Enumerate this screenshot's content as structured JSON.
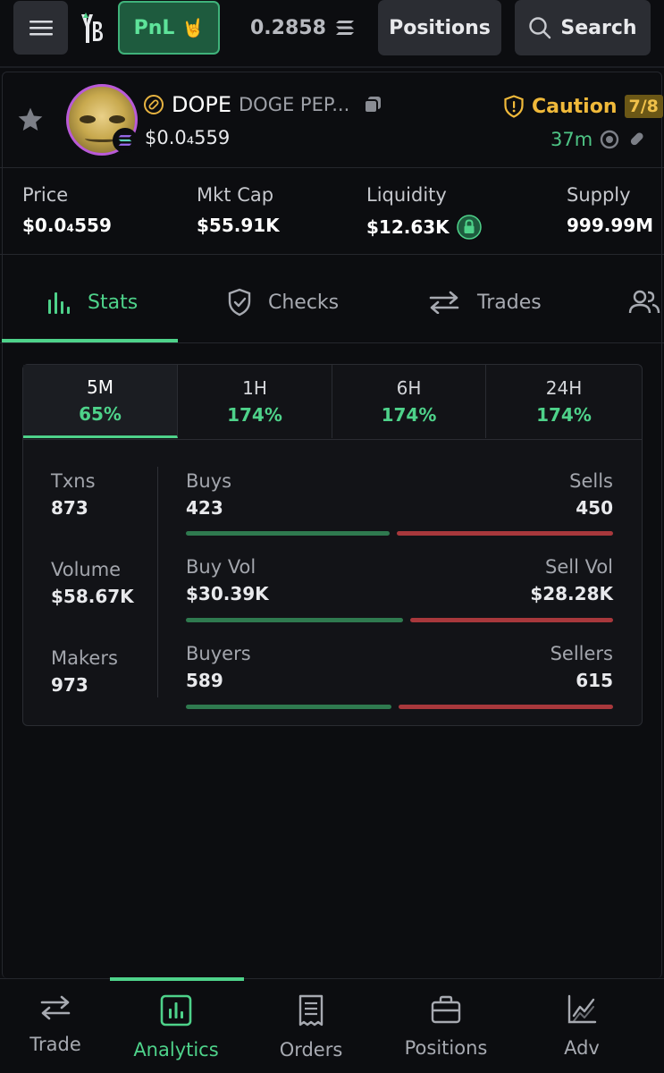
{
  "topbar": {
    "pnl_label": "PnL",
    "pnl_emoji": "🤘",
    "balance": "0.2858",
    "positions_label": "Positions",
    "search_label": "Search"
  },
  "token": {
    "symbol": "DOPE",
    "name": "DOGE PEP...",
    "price": "$0.0₄559",
    "safety_label": "Caution",
    "safety_score": "7/8",
    "age": "37m"
  },
  "metrics": [
    {
      "label": "Price",
      "value": "$0.0₄559"
    },
    {
      "label": "Mkt Cap",
      "value": "$55.91K"
    },
    {
      "label": "Liquidity",
      "value": "$12.63K"
    },
    {
      "label": "Supply",
      "value": "999.99M"
    }
  ],
  "tabs": [
    {
      "label": "Stats",
      "icon": "bar-chart-icon"
    },
    {
      "label": "Checks",
      "icon": "shield-check-icon"
    },
    {
      "label": "Trades",
      "icon": "swap-icon"
    },
    {
      "label": "",
      "icon": "users-icon"
    }
  ],
  "timeframes": [
    {
      "label": "5M",
      "change": "65%"
    },
    {
      "label": "1H",
      "change": "174%"
    },
    {
      "label": "6H",
      "change": "174%"
    },
    {
      "label": "24H",
      "change": "174%"
    }
  ],
  "stats": {
    "txns": {
      "label": "Txns",
      "value": "873"
    },
    "volume": {
      "label": "Volume",
      "value": "$58.67K"
    },
    "makers": {
      "label": "Makers",
      "value": "973"
    },
    "buys": {
      "label": "Buys",
      "value": "423",
      "fraction": 0.485
    },
    "sells": {
      "label": "Sells",
      "value": "450"
    },
    "buy_vol": {
      "label": "Buy Vol",
      "value": "$30.39K",
      "fraction": 0.518
    },
    "sell_vol": {
      "label": "Sell Vol",
      "value": "$28.28K"
    },
    "buyers": {
      "label": "Buyers",
      "value": "589",
      "fraction": 0.489
    },
    "sellers": {
      "label": "Sellers",
      "value": "615"
    }
  },
  "colors": {
    "accent": "#4ed28a",
    "buy_bar": "#2f7a4f",
    "sell_bar": "#a8383c",
    "caution": "#f0b93a"
  },
  "bottom_nav": [
    {
      "label": "Trade",
      "icon": "swap-icon"
    },
    {
      "label": "Analytics",
      "icon": "analytics-icon"
    },
    {
      "label": "Orders",
      "icon": "receipt-icon"
    },
    {
      "label": "Positions",
      "icon": "briefcase-icon"
    },
    {
      "label": "Adv",
      "icon": "trend-chart-icon"
    }
  ]
}
